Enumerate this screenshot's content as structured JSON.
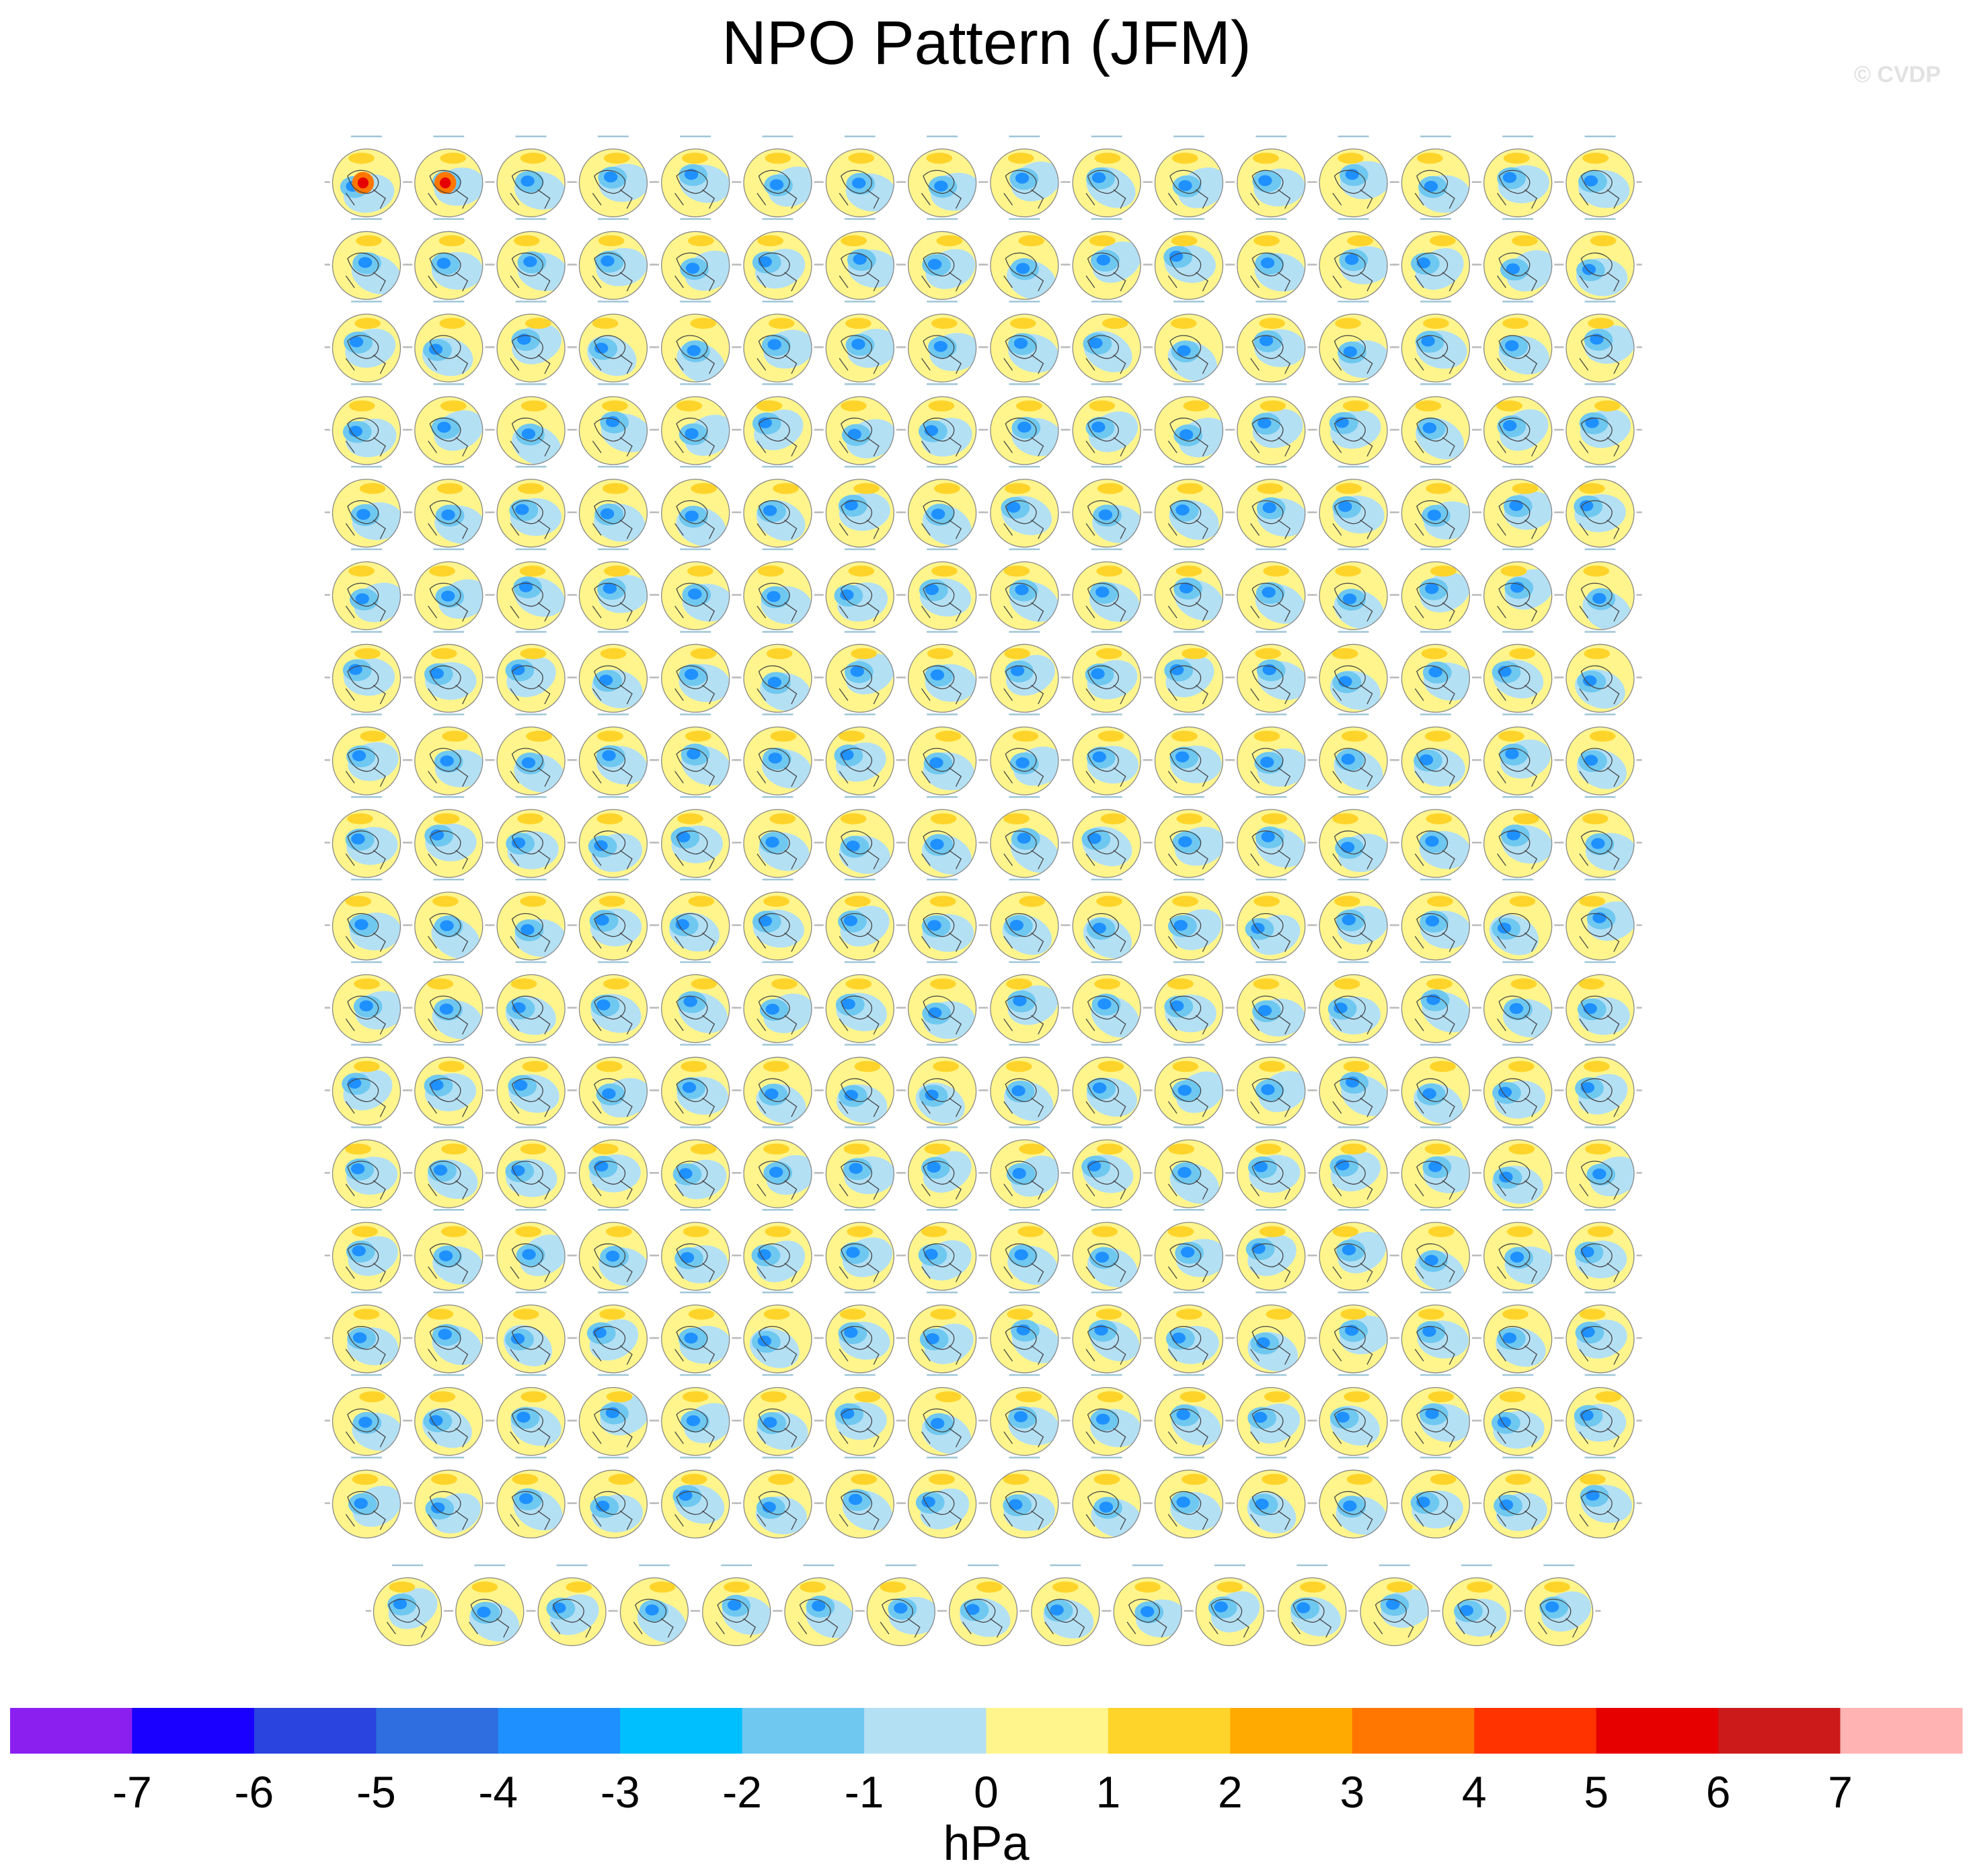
{
  "figure": {
    "title": "NPO Pattern (JFM)",
    "watermark": "© CVDP"
  },
  "chart_data": {
    "type": "heatmap",
    "title": "NPO Pattern (JFM)",
    "description_of_panels": "grid of polar-stereographic SLP anomaly maps",
    "panel_layout": {
      "columns": 16,
      "full_rows": 17,
      "last_row_panels": 15,
      "total_panels": 287
    },
    "colorbar": {
      "label": "hPa",
      "tick_labels": [
        "-7",
        "-6",
        "-5",
        "-4",
        "-3",
        "-2",
        "-1",
        "0",
        "1",
        "2",
        "3",
        "4",
        "5",
        "6",
        "7"
      ],
      "levels": [
        -7,
        -6,
        -5,
        -4,
        -3,
        -2,
        -1,
        0,
        1,
        2,
        3,
        4,
        5,
        6,
        7
      ],
      "colors": [
        "#8a1ff0",
        "#1a00ff",
        "#2a44e0",
        "#2e6ee0",
        "#1f90ff",
        "#00bfff",
        "#6fc8f0",
        "#b4e0f4",
        "#fff58c",
        "#ffd42a",
        "#ffaa00",
        "#ff7700",
        "#ff3300",
        "#e60000",
        "#cc1a1a",
        "#ffb3b3"
      ]
    },
    "map_colors": {
      "positive_weak": "#fff58c",
      "positive_mid": "#ffd42a",
      "positive_strong": "#ffaa00",
      "negative_weak": "#b4e0f4",
      "negative_mid": "#6fc8f0",
      "negative_strong": "#1f90ff",
      "coast": "#444444"
    }
  }
}
